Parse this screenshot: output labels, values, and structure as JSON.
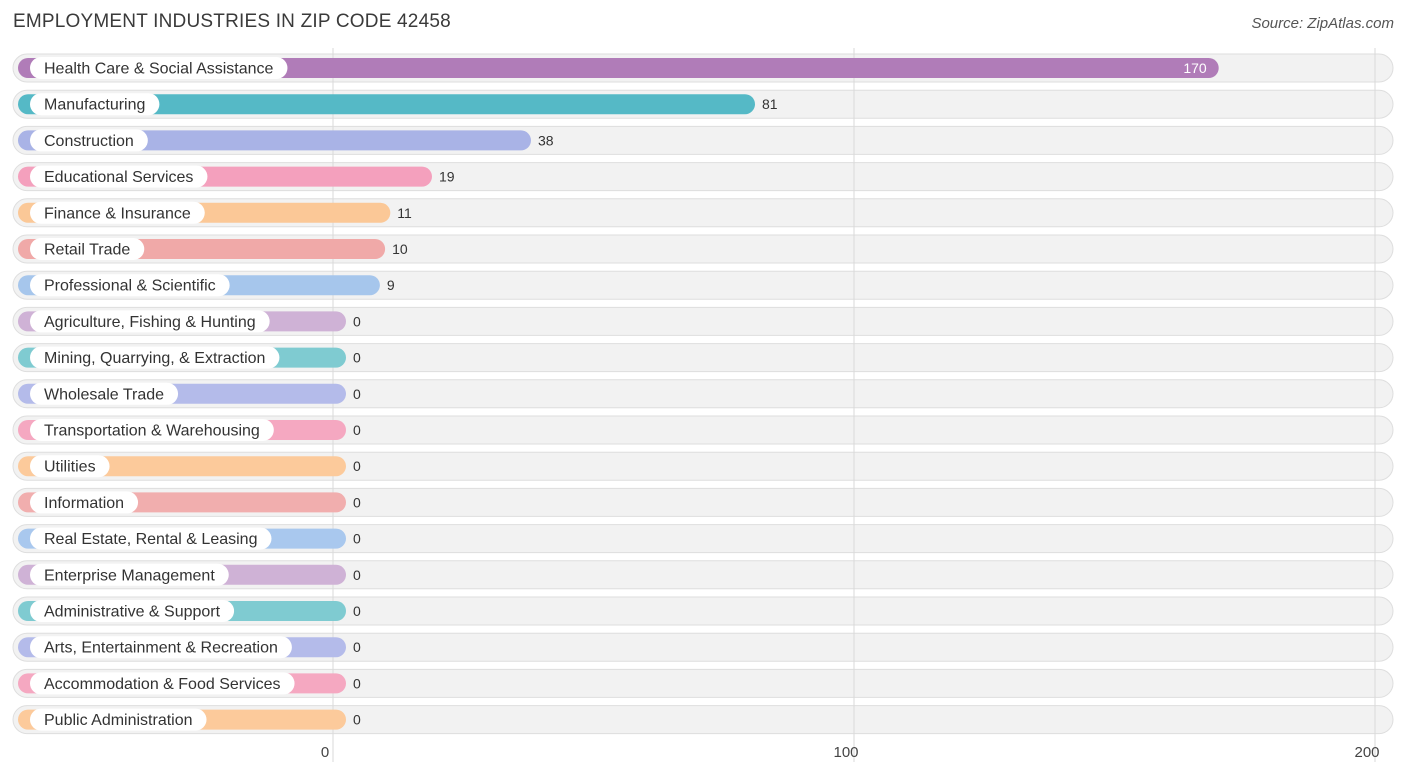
{
  "chart_data": {
    "type": "bar",
    "orientation": "horizontal",
    "title": "EMPLOYMENT INDUSTRIES IN ZIP CODE 42458",
    "source": "Source: ZipAtlas.com",
    "categories": [
      "Health Care & Social Assistance",
      "Manufacturing",
      "Construction",
      "Educational Services",
      "Finance & Insurance",
      "Retail Trade",
      "Professional & Scientific",
      "Agriculture, Fishing & Hunting",
      "Mining, Quarrying, & Extraction",
      "Wholesale Trade",
      "Transportation & Warehousing",
      "Utilities",
      "Information",
      "Real Estate, Rental & Leasing",
      "Enterprise Management",
      "Administrative & Support",
      "Arts, Entertainment & Recreation",
      "Accommodation & Food Services",
      "Public Administration"
    ],
    "values": [
      170,
      81,
      38,
      19,
      11,
      10,
      9,
      0,
      0,
      0,
      0,
      0,
      0,
      0,
      0,
      0,
      0,
      0,
      0
    ],
    "value_labels": [
      "170",
      "81",
      "38",
      "19",
      "11",
      "10",
      "9",
      "0",
      "0",
      "0",
      "0",
      "0",
      "0",
      "0",
      "0",
      "0",
      "0",
      "0",
      "0"
    ],
    "colors": [
      "#b07cb8",
      "#55b9c6",
      "#a9b3e6",
      "#f4a0bd",
      "#fbc897",
      "#f0a9a8",
      "#a6c6ec",
      "#cfb2d6",
      "#7fcbd1",
      "#b4bbea",
      "#f5a8c1",
      "#fcca9b",
      "#f1aeae",
      "#a9c8ee",
      "#cfb2d6",
      "#7fcbd1",
      "#b4bbea",
      "#f5a8c1",
      "#fcca9b"
    ],
    "x_ticks": [
      0,
      100,
      200
    ],
    "x_tick_labels": [
      "0",
      "100",
      "200"
    ],
    "xlim": [
      0,
      200
    ],
    "grid": true
  }
}
